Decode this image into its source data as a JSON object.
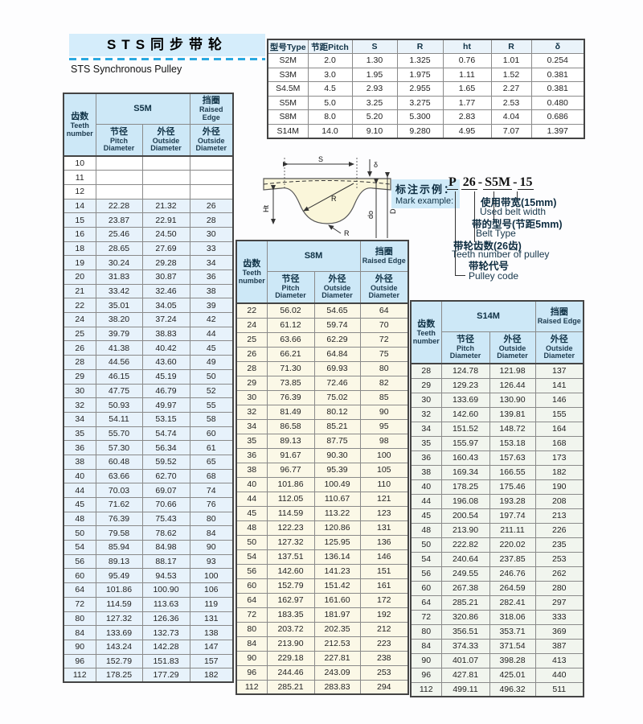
{
  "header": {
    "title_cn": "STS同步带轮",
    "subtitle_en": "STS Synchronous Pulley"
  },
  "spec_table": {
    "columns": [
      "型号Type",
      "节距Pitch",
      "S",
      "R",
      "ht",
      "R",
      "δ"
    ],
    "rows": [
      [
        "S2M",
        "2.0",
        "1.30",
        "1.325",
        "0.76",
        "1.01",
        "0.254"
      ],
      [
        "S3M",
        "3.0",
        "1.95",
        "1.975",
        "1.11",
        "1.52",
        "0.381"
      ],
      [
        "S4.5M",
        "4.5",
        "2.93",
        "2.955",
        "1.65",
        "2.27",
        "0.381"
      ],
      [
        "S5M",
        "5.0",
        "3.25",
        "3.275",
        "1.77",
        "2.53",
        "0.480"
      ],
      [
        "S8M",
        "8.0",
        "5.20",
        "5.300",
        "2.83",
        "4.04",
        "0.686"
      ],
      [
        "S14M",
        "14.0",
        "9.10",
        "9.280",
        "4.95",
        "7.07",
        "1.397"
      ]
    ]
  },
  "labels": {
    "teeth_cn": "齿数",
    "teeth_en": "Teeth number",
    "raised_cn": "挡圈",
    "raised_en": "Raised Edge",
    "pitch_cn": "节径",
    "pitch_en": "Pitch Diameter",
    "outside_cn": "外径",
    "outside_en": "Outside Diameter"
  },
  "s5m": {
    "title": "S5M",
    "rows": [
      [
        "10",
        "",
        "",
        ""
      ],
      [
        "11",
        "",
        "",
        ""
      ],
      [
        "12",
        "",
        "",
        ""
      ],
      [
        "14",
        "22.28",
        "21.32",
        "26"
      ],
      [
        "15",
        "23.87",
        "22.91",
        "28"
      ],
      [
        "16",
        "25.46",
        "24.50",
        "30"
      ],
      [
        "18",
        "28.65",
        "27.69",
        "33"
      ],
      [
        "19",
        "30.24",
        "29.28",
        "34"
      ],
      [
        "20",
        "31.83",
        "30.87",
        "36"
      ],
      [
        "21",
        "33.42",
        "32.46",
        "38"
      ],
      [
        "22",
        "35.01",
        "34.05",
        "39"
      ],
      [
        "24",
        "38.20",
        "37.24",
        "42"
      ],
      [
        "25",
        "39.79",
        "38.83",
        "44"
      ],
      [
        "26",
        "41.38",
        "40.42",
        "45"
      ],
      [
        "28",
        "44.56",
        "43.60",
        "49"
      ],
      [
        "29",
        "46.15",
        "45.19",
        "50"
      ],
      [
        "30",
        "47.75",
        "46.79",
        "52"
      ],
      [
        "32",
        "50.93",
        "49.97",
        "55"
      ],
      [
        "34",
        "54.11",
        "53.15",
        "58"
      ],
      [
        "35",
        "55.70",
        "54.74",
        "60"
      ],
      [
        "36",
        "57.30",
        "56.34",
        "61"
      ],
      [
        "38",
        "60.48",
        "59.52",
        "65"
      ],
      [
        "40",
        "63.66",
        "62.70",
        "68"
      ],
      [
        "44",
        "70.03",
        "69.07",
        "74"
      ],
      [
        "45",
        "71.62",
        "70.66",
        "76"
      ],
      [
        "48",
        "76.39",
        "75.43",
        "80"
      ],
      [
        "50",
        "79.58",
        "78.62",
        "84"
      ],
      [
        "54",
        "85.94",
        "84.98",
        "90"
      ],
      [
        "56",
        "89.13",
        "88.17",
        "93"
      ],
      [
        "60",
        "95.49",
        "94.53",
        "100"
      ],
      [
        "64",
        "101.86",
        "100.90",
        "106"
      ],
      [
        "72",
        "114.59",
        "113.63",
        "119"
      ],
      [
        "80",
        "127.32",
        "126.36",
        "131"
      ],
      [
        "84",
        "133.69",
        "132.73",
        "138"
      ],
      [
        "90",
        "143.24",
        "142.28",
        "147"
      ],
      [
        "96",
        "152.79",
        "151.83",
        "157"
      ],
      [
        "112",
        "178.25",
        "177.29",
        "182"
      ]
    ]
  },
  "s8m": {
    "title": "S8M",
    "rows": [
      [
        "22",
        "56.02",
        "54.65",
        "64"
      ],
      [
        "24",
        "61.12",
        "59.74",
        "70"
      ],
      [
        "25",
        "63.66",
        "62.29",
        "72"
      ],
      [
        "26",
        "66.21",
        "64.84",
        "75"
      ],
      [
        "28",
        "71.30",
        "69.93",
        "80"
      ],
      [
        "29",
        "73.85",
        "72.46",
        "82"
      ],
      [
        "30",
        "76.39",
        "75.02",
        "85"
      ],
      [
        "32",
        "81.49",
        "80.12",
        "90"
      ],
      [
        "34",
        "86.58",
        "85.21",
        "95"
      ],
      [
        "35",
        "89.13",
        "87.75",
        "98"
      ],
      [
        "36",
        "91.67",
        "90.30",
        "100"
      ],
      [
        "38",
        "96.77",
        "95.39",
        "105"
      ],
      [
        "40",
        "101.86",
        "100.49",
        "110"
      ],
      [
        "44",
        "112.05",
        "110.67",
        "121"
      ],
      [
        "45",
        "114.59",
        "113.22",
        "123"
      ],
      [
        "48",
        "122.23",
        "120.86",
        "131"
      ],
      [
        "50",
        "127.32",
        "125.95",
        "136"
      ],
      [
        "54",
        "137.51",
        "136.14",
        "146"
      ],
      [
        "56",
        "142.60",
        "141.23",
        "151"
      ],
      [
        "60",
        "152.79",
        "151.42",
        "161"
      ],
      [
        "64",
        "162.97",
        "161.60",
        "172"
      ],
      [
        "72",
        "183.35",
        "181.97",
        "192"
      ],
      [
        "80",
        "203.72",
        "202.35",
        "212"
      ],
      [
        "84",
        "213.90",
        "212.53",
        "223"
      ],
      [
        "90",
        "229.18",
        "227.81",
        "238"
      ],
      [
        "96",
        "244.46",
        "243.09",
        "253"
      ],
      [
        "112",
        "285.21",
        "283.83",
        "294"
      ]
    ]
  },
  "s14m": {
    "title": "S14M",
    "rows": [
      [
        "28",
        "124.78",
        "121.98",
        "137"
      ],
      [
        "29",
        "129.23",
        "126.44",
        "141"
      ],
      [
        "30",
        "133.69",
        "130.90",
        "146"
      ],
      [
        "32",
        "142.60",
        "139.81",
        "155"
      ],
      [
        "34",
        "151.52",
        "148.72",
        "164"
      ],
      [
        "35",
        "155.97",
        "153.18",
        "168"
      ],
      [
        "36",
        "160.43",
        "157.63",
        "173"
      ],
      [
        "38",
        "169.34",
        "166.55",
        "182"
      ],
      [
        "40",
        "178.25",
        "175.46",
        "190"
      ],
      [
        "44",
        "196.08",
        "193.28",
        "208"
      ],
      [
        "45",
        "200.54",
        "197.74",
        "213"
      ],
      [
        "48",
        "213.90",
        "211.11",
        "226"
      ],
      [
        "50",
        "222.82",
        "220.02",
        "235"
      ],
      [
        "54",
        "240.64",
        "237.85",
        "253"
      ],
      [
        "56",
        "249.55",
        "246.76",
        "262"
      ],
      [
        "60",
        "267.38",
        "264.59",
        "280"
      ],
      [
        "64",
        "285.21",
        "282.41",
        "297"
      ],
      [
        "72",
        "320.86",
        "318.06",
        "333"
      ],
      [
        "80",
        "356.51",
        "353.71",
        "369"
      ],
      [
        "84",
        "374.33",
        "371.54",
        "387"
      ],
      [
        "90",
        "401.07",
        "398.28",
        "413"
      ],
      [
        "96",
        "427.81",
        "425.01",
        "440"
      ],
      [
        "112",
        "499.11",
        "496.32",
        "511"
      ]
    ]
  },
  "diagram": {
    "dim_s": "S",
    "dim_delta": "δ",
    "dim_r_top": "R",
    "dim_ht": "Ht",
    "dim_r_bottom": "R",
    "dim_do": "do",
    "dim_d": "D"
  },
  "mark_example": {
    "label_cn": "标注示例：",
    "label_en": "Mark example:",
    "code_p": "P",
    "code_teeth": "26",
    "code_type": "S5M",
    "code_width": "15",
    "dash": "-",
    "ann_width_cn": "使用带宽(15mm)",
    "ann_width_en": "Used belt width",
    "ann_type_cn": "带的型号(节距5mm)",
    "ann_type_en": "Belt Type",
    "ann_teeth_cn": "带轮齿数(26齿)",
    "ann_teeth_en": "Teeth number of pulley",
    "ann_code_cn": "带轮代号",
    "ann_code_en": "Pulley code"
  }
}
